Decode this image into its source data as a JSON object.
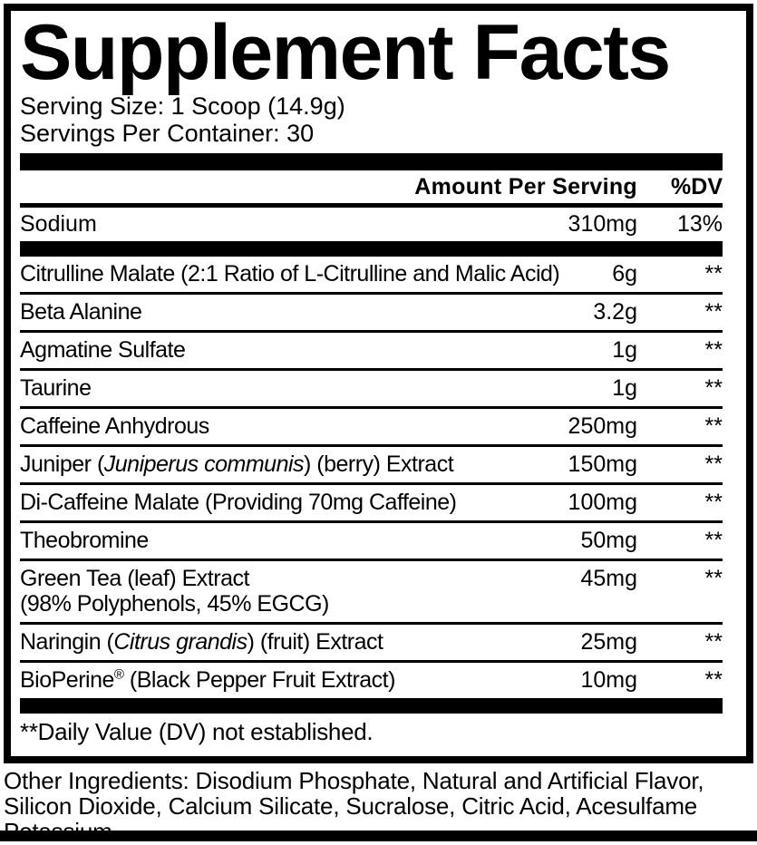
{
  "colors": {
    "ink": "#000000",
    "background": "#ffffff"
  },
  "panel": {
    "title": "Supplement Facts",
    "serving_size": "Serving Size: 1 Scoop (14.9g)",
    "servings_per_container": "Servings Per Container: 30",
    "header": {
      "amount_label": "Amount Per Serving",
      "dv_label": "%DV"
    },
    "sodium_row": {
      "name": "Sodium",
      "amount": "310mg",
      "dv": "13%"
    },
    "rows": [
      {
        "pre": "Citrulline Malate (2:1 Ratio of L-Citrulline and Malic Acid)",
        "amount": "6g",
        "dv": "**"
      },
      {
        "pre": "Beta Alanine",
        "amount": "3.2g",
        "dv": "**"
      },
      {
        "pre": "Agmatine Sulfate",
        "amount": "1g",
        "dv": "**"
      },
      {
        "pre": "Taurine",
        "amount": "1g",
        "dv": "**"
      },
      {
        "pre": "Caffeine Anhydrous",
        "amount": "250mg",
        "dv": "**"
      },
      {
        "pre": "Juniper (",
        "italic": "Juniperus communis",
        "post": ") (berry) Extract",
        "amount": "150mg",
        "dv": "**"
      },
      {
        "pre": "Di-Caffeine Malate (Providing 70mg Caffeine)",
        "amount": "100mg",
        "dv": "**"
      },
      {
        "pre": "Theobromine",
        "amount": "50mg",
        "dv": "**"
      },
      {
        "pre": "Green Tea (leaf) Extract",
        "line2": "(98% Polyphenols, 45% EGCG)",
        "amount": "45mg",
        "dv": "**"
      },
      {
        "pre": "Naringin (",
        "italic": "Citrus grandis",
        "post": ") (fruit) Extract",
        "amount": "25mg",
        "dv": "**"
      },
      {
        "pre": "BioPerine",
        "sup": "®",
        "post": " (Black Pepper Fruit Extract)",
        "amount": "10mg",
        "dv": "**"
      }
    ],
    "footnote": "**Daily Value (DV) not established."
  },
  "other_ingredients": "Other Ingredients: Disodium Phosphate, Natural and Artificial Flavor, Silicon Dioxide, Calcium Silicate, Sucralose, Citric Acid, Acesulfame Potassium."
}
